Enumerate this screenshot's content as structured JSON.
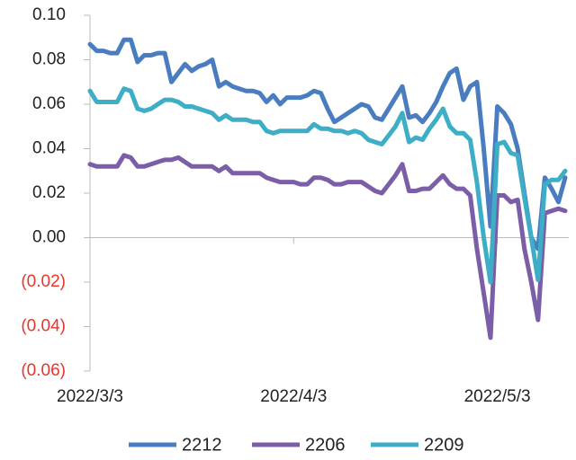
{
  "chart_data": {
    "type": "line",
    "categories": [
      "2022/3/3",
      null,
      null,
      null,
      null,
      null,
      null,
      null,
      null,
      null,
      null,
      null,
      null,
      null,
      null,
      null,
      null,
      null,
      null,
      null,
      null,
      null,
      null,
      null,
      null,
      null,
      null,
      null,
      null,
      null,
      "2022/4/3",
      null,
      null,
      null,
      null,
      null,
      null,
      null,
      null,
      null,
      null,
      null,
      null,
      null,
      null,
      null,
      null,
      null,
      null,
      null,
      null,
      null,
      null,
      null,
      null,
      null,
      null,
      null,
      null,
      null,
      "2022/5/3",
      null,
      null,
      null,
      null,
      null,
      null,
      null,
      null,
      null,
      null
    ],
    "series": [
      {
        "name": "2212",
        "color": "#4a7dbf",
        "values": [
          0.087,
          0.084,
          0.084,
          0.083,
          0.083,
          0.089,
          0.089,
          0.079,
          0.082,
          0.082,
          0.083,
          0.083,
          0.07,
          0.074,
          0.078,
          0.075,
          0.077,
          0.078,
          0.08,
          0.068,
          0.07,
          0.068,
          0.067,
          0.066,
          0.066,
          0.065,
          0.061,
          0.064,
          0.06,
          0.063,
          0.063,
          0.063,
          0.064,
          0.066,
          0.065,
          0.058,
          0.052,
          0.054,
          0.056,
          0.058,
          0.06,
          0.059,
          0.054,
          0.053,
          0.058,
          0.063,
          0.068,
          0.054,
          0.055,
          0.052,
          0.056,
          0.061,
          0.068,
          0.074,
          0.076,
          0.062,
          0.068,
          0.07,
          0.04,
          0.005,
          0.059,
          0.056,
          0.051,
          0.04,
          0.02,
          0.0,
          -0.005,
          0.027,
          0.022,
          0.016,
          0.027
        ]
      },
      {
        "name": "2206",
        "color": "#7b5ea7",
        "values": [
          0.033,
          0.032,
          0.032,
          0.032,
          0.032,
          0.037,
          0.036,
          0.032,
          0.032,
          0.033,
          0.034,
          0.035,
          0.035,
          0.036,
          0.034,
          0.032,
          0.032,
          0.032,
          0.032,
          0.03,
          0.032,
          0.029,
          0.029,
          0.029,
          0.029,
          0.029,
          0.027,
          0.026,
          0.025,
          0.025,
          0.025,
          0.024,
          0.024,
          0.027,
          0.027,
          0.026,
          0.024,
          0.024,
          0.025,
          0.025,
          0.025,
          0.023,
          0.021,
          0.02,
          0.024,
          0.028,
          0.033,
          0.021,
          0.021,
          0.022,
          0.022,
          0.025,
          0.028,
          0.024,
          0.022,
          0.022,
          0.019,
          -0.005,
          -0.025,
          -0.045,
          0.019,
          0.019,
          0.016,
          0.017,
          -0.005,
          -0.02,
          -0.037,
          0.011,
          0.012,
          0.013,
          0.012
        ]
      },
      {
        "name": "2209",
        "color": "#3eadc6",
        "values": [
          0.066,
          0.061,
          0.061,
          0.061,
          0.061,
          0.067,
          0.066,
          0.058,
          0.057,
          0.058,
          0.06,
          0.062,
          0.062,
          0.061,
          0.059,
          0.059,
          0.058,
          0.057,
          0.056,
          0.053,
          0.055,
          0.053,
          0.053,
          0.053,
          0.052,
          0.052,
          0.048,
          0.047,
          0.048,
          0.048,
          0.048,
          0.048,
          0.048,
          0.051,
          0.049,
          0.049,
          0.048,
          0.048,
          0.047,
          0.048,
          0.047,
          0.044,
          0.043,
          0.042,
          0.046,
          0.05,
          0.056,
          0.043,
          0.045,
          0.044,
          0.049,
          0.053,
          0.058,
          0.05,
          0.047,
          0.047,
          0.044,
          0.025,
          0.0,
          -0.02,
          0.042,
          0.043,
          0.038,
          0.037,
          0.018,
          0.0,
          -0.019,
          0.024,
          0.026,
          0.026,
          0.03
        ]
      }
    ],
    "ylim": [
      -0.06,
      0.1
    ],
    "yticks": [
      {
        "value": -0.06,
        "label": "(0.06)"
      },
      {
        "value": -0.04,
        "label": "(0.04)"
      },
      {
        "value": -0.02,
        "label": "(0.02)"
      },
      {
        "value": 0,
        "label": "0.00"
      },
      {
        "value": 0.02,
        "label": "0.02"
      },
      {
        "value": 0.04,
        "label": "0.04"
      },
      {
        "value": 0.06,
        "label": "0.06"
      },
      {
        "value": 0.08,
        "label": "0.08"
      },
      {
        "value": 0.1,
        "label": "0.10"
      }
    ],
    "negative_tick_label_color": "#e8352e",
    "legend": "bottom"
  }
}
